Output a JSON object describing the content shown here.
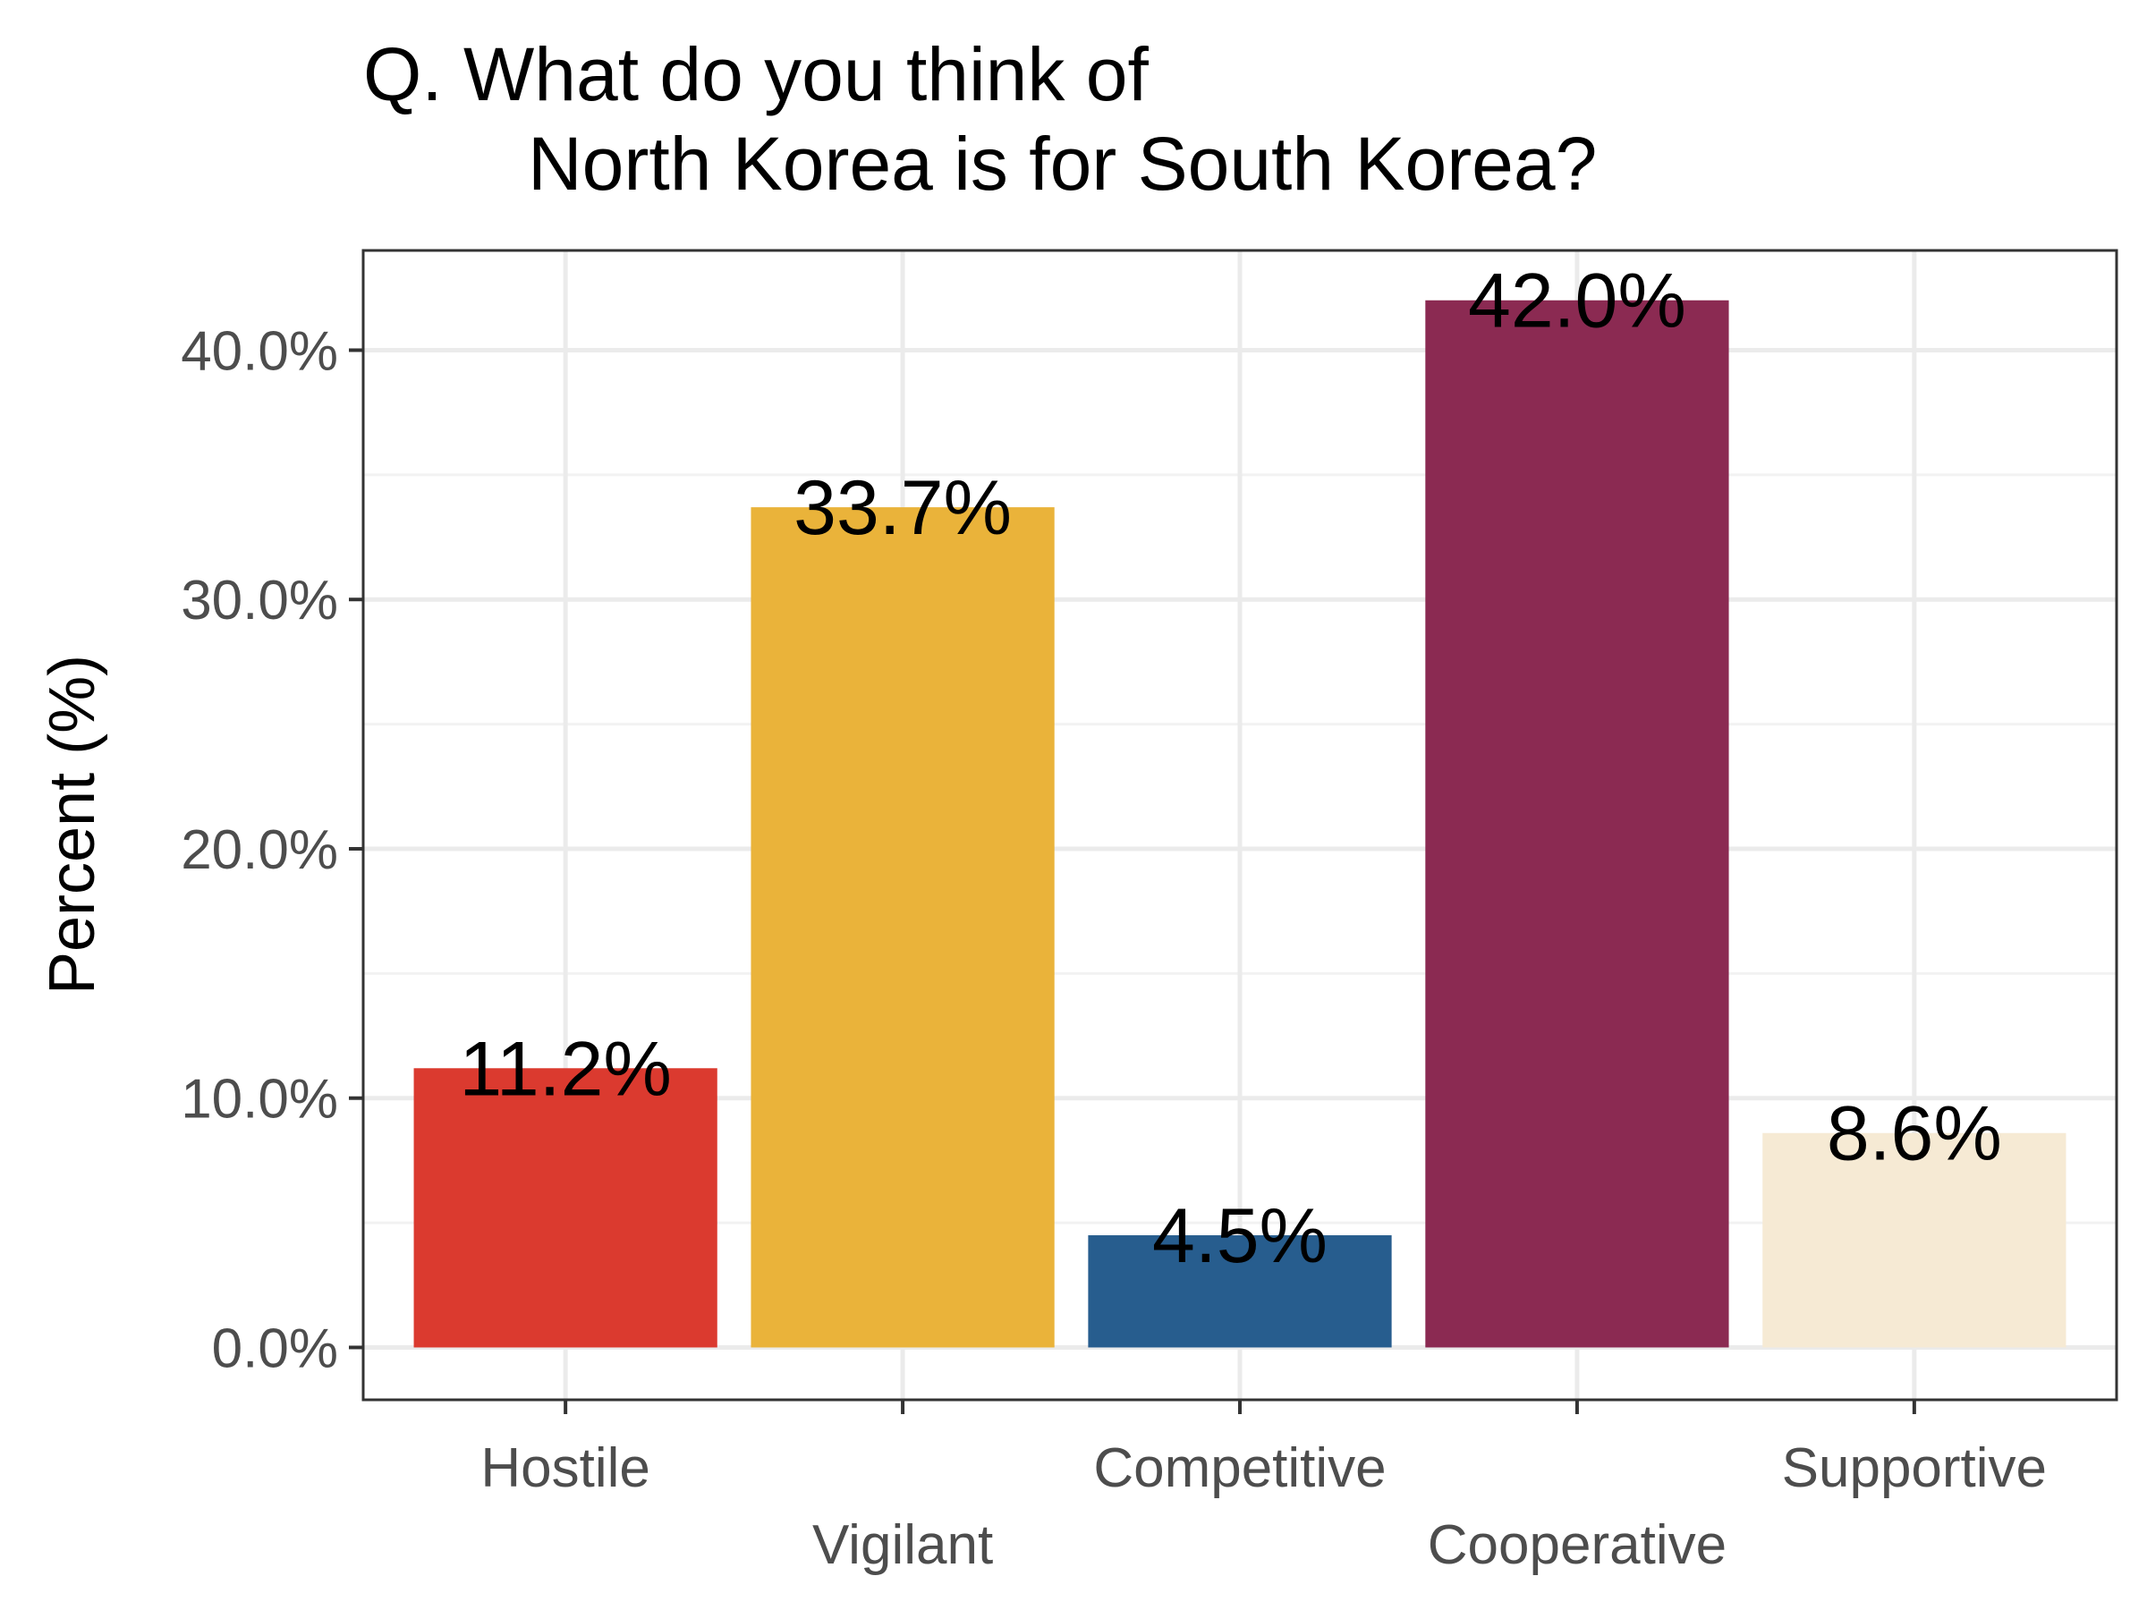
{
  "chart_data": {
    "type": "bar",
    "title_line1": "Q. What do you think of",
    "title_line2": "North Korea is for South Korea?",
    "xlabel": "",
    "ylabel": "Percent (%)",
    "categories": [
      "Hostile",
      "Vigilant",
      "Competitive",
      "Cooperative",
      "Supportive"
    ],
    "values": [
      11.2,
      33.7,
      4.5,
      42.0,
      8.6
    ],
    "data_labels": [
      "11.2%",
      "33.7%",
      "4.5%",
      "42.0%",
      "8.6%"
    ],
    "colors": [
      "#DB3A2F",
      "#EAB33A",
      "#275D8E",
      "#8B2A52",
      "#F6EAD4"
    ],
    "ylim": [
      -2.1,
      44.0
    ],
    "yticks": [
      0,
      10,
      20,
      30,
      40
    ],
    "ytick_labels": [
      "0.0%",
      "10.0%",
      "20.0%",
      "30.0%",
      "40.0%"
    ],
    "grid": true,
    "legend": "none"
  }
}
